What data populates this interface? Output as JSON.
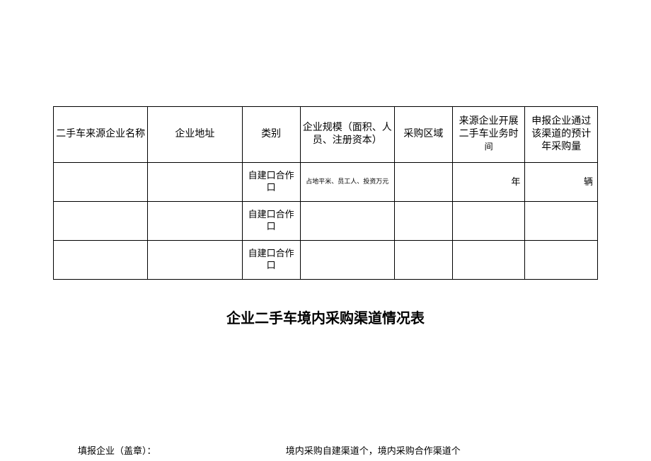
{
  "table": {
    "headers": {
      "col1": "二手车来源企业名称",
      "col2": "企业地址",
      "col3": "类别",
      "col4": "企业规模（面积、人员、注册资本）",
      "col5": "采购区域",
      "col6_line1": "来源企业开展二手车业务时",
      "col6_line2": "间",
      "col7": "申报企业通过该渠道的预计年采购量"
    },
    "rows": [
      {
        "name": "",
        "address": "",
        "type": "自建口合作口",
        "scale": "占地平米、员工人、投资万元",
        "region": "",
        "time": "年",
        "volume": "辆"
      },
      {
        "name": "",
        "address": "",
        "type": "自建口合作口",
        "scale": "",
        "region": "",
        "time": "",
        "volume": ""
      },
      {
        "name": "",
        "address": "",
        "type": "自建口合作口",
        "scale": "",
        "region": "",
        "time": "",
        "volume": ""
      }
    ]
  },
  "title": "企业二手车境内采购渠道情况表",
  "footer": {
    "left": "填报企业（盖章）：",
    "right": "境内采购自建渠道个，境内采购合作渠道个"
  }
}
